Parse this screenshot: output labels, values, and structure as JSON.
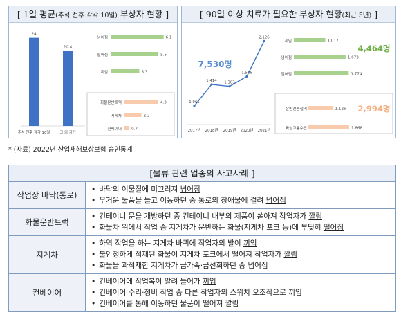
{
  "left_panel": {
    "title_main": "[ 1일 평균",
    "title_small": "(추석 전후 각각 10일)",
    "title_end": " 부상자 현황 ]",
    "bar_chart": {
      "type": "bar",
      "categories": [
        "추석 전후 각각 10일",
        "그 외 기간"
      ],
      "values": [
        24,
        20.4
      ],
      "value_labels": [
        "24",
        "20.4"
      ],
      "ylim": [
        0,
        26
      ],
      "color": "#3d72c4"
    },
    "injury_chart": {
      "type": "bar",
      "categories": [
        "넘어짐",
        "떨어짐",
        "끼임"
      ],
      "values": [
        6.1,
        5.5,
        3.3
      ],
      "value_labels": [
        "6.1",
        "5.5",
        "3.3"
      ],
      "xlim": [
        0,
        7
      ],
      "color": "#a9d18e"
    },
    "equipment_chart": {
      "type": "bar",
      "categories": [
        "화물운반트럭",
        "지게차",
        "컨베이어"
      ],
      "values": [
        4.3,
        2.2,
        0.7
      ],
      "value_labels": [
        "4.3",
        "2.2",
        "0.7"
      ],
      "xlim": [
        0,
        5
      ],
      "color": "#f8cbad"
    }
  },
  "right_panel": {
    "title_main": "[ 90일 이상 치료가 필요한 부상자 현황",
    "title_small": "(최근 5년)",
    "title_end": " ]",
    "line_chart": {
      "type": "line",
      "x": [
        "2017년",
        "2018년",
        "2019년",
        "2020년",
        "2021년"
      ],
      "values": [
        1061,
        1414,
        1383,
        1546,
        2126
      ],
      "value_labels": [
        "1,061",
        "1,414",
        "1,383",
        "1,546",
        "2,126"
      ],
      "ylim": [
        800,
        2300
      ],
      "total_label": "7,530명",
      "color": "#3d72c4"
    },
    "injury_chart": {
      "type": "bar",
      "categories": [
        "끼임",
        "넘어짐",
        "떨어짐"
      ],
      "values": [
        1017,
        1673,
        1774
      ],
      "value_labels": [
        "1,017",
        "1,673",
        "1,774"
      ],
      "xlim": [
        0,
        1900
      ],
      "total_label": "4,464명",
      "color": "#a9d18e",
      "total_color": "#70ad47"
    },
    "equipment_chart": {
      "type": "bar",
      "categories": [
        "운반전용설비",
        "육상교통수단"
      ],
      "values": [
        1126,
        1868
      ],
      "value_labels": [
        "1,126",
        "1,868"
      ],
      "xlim": [
        0,
        1900
      ],
      "total_label": "2,994명",
      "color": "#f8cbad",
      "total_color": "#f4b183"
    }
  },
  "source_note": "* (자료) 2022년 산업재해보상보험 승인통계",
  "cases": {
    "title": "[물류 관련 업종의 사고사례 ]",
    "rows": [
      {
        "category": "작업장 바닥(통로)",
        "items": [
          {
            "text": "바닥의 이물질에 미끄러져 ",
            "u": "넘어짐"
          },
          {
            "text": "무거운 물품을 들고 이동하던 중 통로의 장애물에 걸려 ",
            "u": "넘어짐"
          }
        ]
      },
      {
        "category": "화물운반트럭",
        "items": [
          {
            "text": "컨테이너 문을 개방하던 중 컨테이너 내부의 제품이 쏟아져 작업자가 ",
            "u": "깔림"
          },
          {
            "text": "화물차 위에서 작업 중 지게차가 운반하는 화물(지게차 포크 등)에 부딪혀 ",
            "u": "떨어짐"
          }
        ]
      },
      {
        "category": "지게차",
        "items": [
          {
            "text": "하역 작업을 하는 지게차 바퀴에 작업자의 발이 ",
            "u": "끼임"
          },
          {
            "text": "불안정하게 적재된 화물이 지게차 포크에서 떨어져 작업자가 ",
            "u": "깔림"
          },
          {
            "text": "화물을 과적재한 지게차가 급가속·급선회하던 중 ",
            "u": "넘어짐"
          }
        ]
      },
      {
        "category": "컨베이어",
        "items": [
          {
            "text": "컨베이어에 작업복이 말려 들어가 ",
            "u": "끼임"
          },
          {
            "text": "컨베이어 수리·정비 작업 중 다른 작업자의 스위치 오조작으로 ",
            "u": "끼임"
          },
          {
            "text": "컨베이어를 통해 이동하던 물품이 떨어져 ",
            "u": "깔림"
          }
        ]
      }
    ]
  }
}
